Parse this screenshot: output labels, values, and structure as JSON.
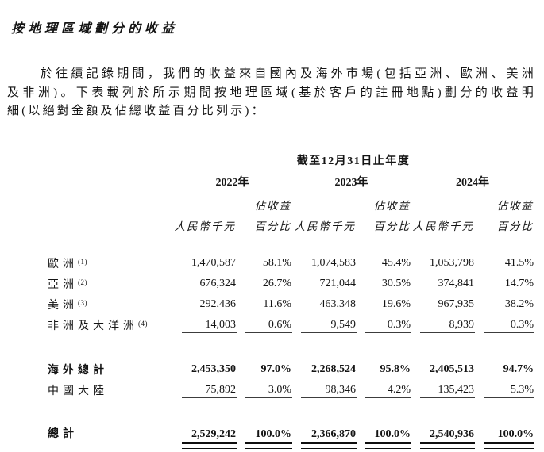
{
  "colors": {
    "background": "#ffffff",
    "text": "#141414",
    "rule": "#3c3c3c"
  },
  "title": "按地理區域劃分的收益",
  "paragraph": {
    "lines": [
      "於往績記錄期間，我們的收益來自國內及海外市場(包括亞洲、歐洲、美洲",
      "及非洲)。下表載列於所示期間按地理區域(基於客戶的註冊地點)劃分的收益明",
      "細(以絕對金額及佔總收益百分比列示)："
    ]
  },
  "table": {
    "period_header": "截至12月31日止年度",
    "years": [
      "2022年",
      "2023年",
      "2024年"
    ],
    "subheader": {
      "share_line1": "佔收益",
      "share_line2": "百分比",
      "amount": "人民幣千元"
    },
    "rows": [
      {
        "label": "歐洲",
        "footnote": "(1)",
        "values": [
          "1,470,587",
          "58.1%",
          "1,074,583",
          "45.4%",
          "1,053,798",
          "41.5%"
        ]
      },
      {
        "label": "亞洲",
        "footnote": "(2)",
        "values": [
          "676,324",
          "26.7%",
          "721,044",
          "30.5%",
          "374,841",
          "14.7%"
        ]
      },
      {
        "label": "美洲",
        "footnote": "(3)",
        "values": [
          "292,436",
          "11.6%",
          "463,348",
          "19.6%",
          "967,935",
          "38.2%"
        ]
      },
      {
        "label": "非洲及大洋洲",
        "footnote": "(4)",
        "values": [
          "14,003",
          "0.6%",
          "9,549",
          "0.3%",
          "8,939",
          "0.3%"
        ]
      },
      {
        "label": "海外總計",
        "footnote": "",
        "values": [
          "2,453,350",
          "97.0%",
          "2,268,524",
          "95.8%",
          "2,405,513",
          "94.7%"
        ]
      },
      {
        "label": "中國大陸",
        "footnote": "",
        "values": [
          "75,892",
          "3.0%",
          "98,346",
          "4.2%",
          "135,423",
          "5.3%"
        ]
      },
      {
        "label": "總計",
        "footnote": "",
        "values": [
          "2,529,242",
          "100.0%",
          "2,366,870",
          "100.0%",
          "2,540,936",
          "100.0%"
        ]
      }
    ]
  }
}
